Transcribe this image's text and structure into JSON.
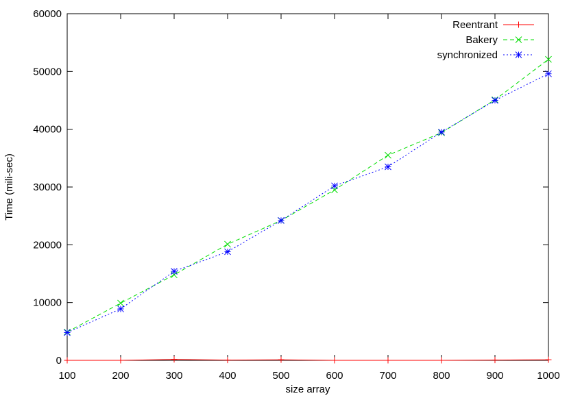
{
  "chart_data": {
    "type": "line",
    "xlabel": "size array",
    "ylabel": "Time (mili-sec)",
    "xlim": [
      100,
      1000
    ],
    "ylim": [
      0,
      60000
    ],
    "x_ticks": [
      100,
      200,
      300,
      400,
      500,
      600,
      700,
      800,
      900,
      1000
    ],
    "y_ticks": [
      0,
      10000,
      20000,
      30000,
      40000,
      50000,
      60000
    ],
    "x": [
      100,
      200,
      300,
      400,
      500,
      600,
      700,
      800,
      900,
      1000
    ],
    "grid": false,
    "legend_position": "top-right",
    "series": [
      {
        "name": "Reentrant",
        "color": "#ff0000",
        "marker": "plus",
        "dash": "solid",
        "values": [
          0,
          0,
          150,
          50,
          100,
          0,
          0,
          0,
          50,
          100
        ]
      },
      {
        "name": "Bakery",
        "color": "#00dd00",
        "marker": "cross",
        "dash": "dashed",
        "values": [
          4900,
          9900,
          14800,
          20100,
          24200,
          29500,
          35500,
          39400,
          45100,
          52100
        ]
      },
      {
        "name": "synchronized",
        "color": "#0000ff",
        "marker": "star",
        "dash": "dotted",
        "values": [
          4800,
          8900,
          15400,
          18800,
          24200,
          30200,
          33500,
          39500,
          45000,
          49600
        ]
      }
    ]
  }
}
